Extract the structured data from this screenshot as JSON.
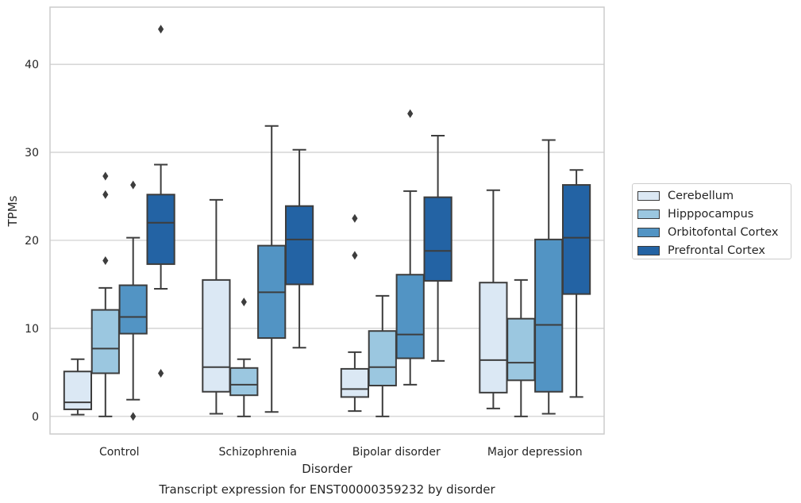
{
  "chart_data": {
    "type": "box",
    "caption": "Transcript expression for ENST00000359232 by disorder",
    "xlabel": "Disorder",
    "ylabel": "TPMs",
    "ylim": [
      -2,
      46.5
    ],
    "yticks": [
      0,
      10,
      20,
      30,
      40
    ],
    "grid": "horizontal",
    "legend_position": "right",
    "categories": [
      "Control",
      "Schizophrenia",
      "Bipolar disorder",
      "Major depression"
    ],
    "series": [
      {
        "name": "Cerebellum",
        "color": "#dbe8f4",
        "boxes": [
          {
            "whisker_low": 0.2,
            "q1": 0.8,
            "median": 1.6,
            "q3": 5.1,
            "whisker_high": 6.5,
            "outliers": []
          },
          {
            "whisker_low": 0.3,
            "q1": 2.8,
            "median": 5.6,
            "q3": 15.5,
            "whisker_high": 24.6,
            "outliers": []
          },
          {
            "whisker_low": 0.6,
            "q1": 2.2,
            "median": 3.1,
            "q3": 5.4,
            "whisker_high": 7.3,
            "outliers": [
              18.3,
              22.5
            ]
          },
          {
            "whisker_low": 0.9,
            "q1": 2.7,
            "median": 6.4,
            "q3": 15.2,
            "whisker_high": 25.7,
            "outliers": []
          }
        ]
      },
      {
        "name": "Hipppocampus",
        "color": "#9bc7e0",
        "boxes": [
          {
            "whisker_low": 0.0,
            "q1": 4.9,
            "median": 7.7,
            "q3": 12.1,
            "whisker_high": 14.6,
            "outliers": [
              17.7,
              25.2,
              27.3
            ]
          },
          {
            "whisker_low": 0.0,
            "q1": 2.4,
            "median": 3.6,
            "q3": 5.5,
            "whisker_high": 6.5,
            "outliers": [
              13.0
            ]
          },
          {
            "whisker_low": 0.0,
            "q1": 3.5,
            "median": 5.6,
            "q3": 9.7,
            "whisker_high": 13.7,
            "outliers": []
          },
          {
            "whisker_low": 0.0,
            "q1": 4.1,
            "median": 6.1,
            "q3": 11.1,
            "whisker_high": 15.5,
            "outliers": []
          }
        ]
      },
      {
        "name": "Orbitofontal Cortex",
        "color": "#5294c4",
        "boxes": [
          {
            "whisker_low": 1.9,
            "q1": 9.4,
            "median": 11.3,
            "q3": 14.9,
            "whisker_high": 20.3,
            "outliers": [
              0.0,
              26.3
            ]
          },
          {
            "whisker_low": 0.5,
            "q1": 8.9,
            "median": 14.1,
            "q3": 19.4,
            "whisker_high": 33.0,
            "outliers": []
          },
          {
            "whisker_low": 3.6,
            "q1": 6.6,
            "median": 9.3,
            "q3": 16.1,
            "whisker_high": 25.6,
            "outliers": [
              34.4
            ]
          },
          {
            "whisker_low": 0.3,
            "q1": 2.8,
            "median": 10.4,
            "q3": 20.1,
            "whisker_high": 31.4,
            "outliers": []
          }
        ]
      },
      {
        "name": "Prefrontal Cortex",
        "color": "#2363a4",
        "boxes": [
          {
            "whisker_low": 14.5,
            "q1": 17.3,
            "median": 22.0,
            "q3": 25.2,
            "whisker_high": 28.6,
            "outliers": [
              4.9,
              44.0
            ]
          },
          {
            "whisker_low": 7.8,
            "q1": 15.0,
            "median": 20.1,
            "q3": 23.9,
            "whisker_high": 30.3,
            "outliers": []
          },
          {
            "whisker_low": 6.3,
            "q1": 15.4,
            "median": 18.8,
            "q3": 24.9,
            "whisker_high": 31.9,
            "outliers": []
          },
          {
            "whisker_low": 2.2,
            "q1": 13.9,
            "median": 20.3,
            "q3": 26.3,
            "whisker_high": 28.0,
            "outliers": []
          }
        ]
      }
    ]
  }
}
